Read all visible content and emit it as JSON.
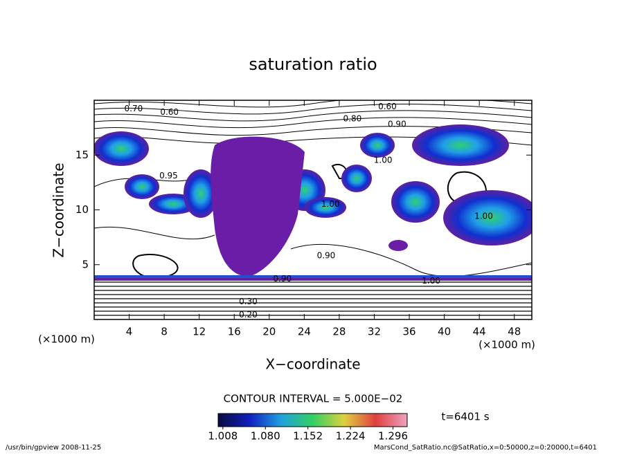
{
  "chart_data": {
    "type": "contour",
    "title": "saturation ratio",
    "x_label": "X−coordinate",
    "y_label": "Z−coordinate",
    "x_unit_label": "(×1000 m)",
    "y_unit_label": "(×1000 m)",
    "xlim": [
      0,
      50
    ],
    "xticks": [
      4,
      8,
      12,
      16,
      20,
      24,
      28,
      32,
      36,
      40,
      44,
      48
    ],
    "ylim": [
      0,
      20
    ],
    "yticks": [
      5,
      10,
      15
    ],
    "contour_interval": "CONTOUR INTERVAL = 5.000E−02",
    "time_label": "t=6401 s",
    "contour_labels": [
      {
        "text": "0.70",
        "x": 4.5,
        "y": 19.2
      },
      {
        "text": "0.60",
        "x": 8.6,
        "y": 18.9
      },
      {
        "text": "0.80",
        "x": 29.5,
        "y": 18.3
      },
      {
        "text": "0.60",
        "x": 33.5,
        "y": 19.4
      },
      {
        "text": "0.90",
        "x": 34.6,
        "y": 17.8
      },
      {
        "text": "1.00",
        "x": 33,
        "y": 14.5
      },
      {
        "text": "0.95",
        "x": 8.5,
        "y": 13.1
      },
      {
        "text": "1.00",
        "x": 27,
        "y": 10.5
      },
      {
        "text": "1.00",
        "x": 44.5,
        "y": 9.4
      },
      {
        "text": "0.90",
        "x": 26.5,
        "y": 5.8
      },
      {
        "text": "0.90",
        "x": 21.5,
        "y": 3.7
      },
      {
        "text": "1.00",
        "x": 38.5,
        "y": 3.5
      },
      {
        "text": "0.30",
        "x": 17.6,
        "y": 1.6
      },
      {
        "text": "0.20",
        "x": 17.6,
        "y": 0.4
      }
    ],
    "colorbar": {
      "clim": [
        1.0,
        1.32
      ],
      "ticks": [
        1.008,
        {
          "value": 1.08,
          "label": "1.080"
        },
        1.152,
        1.224,
        1.296
      ],
      "colors": [
        "#0a0a40",
        "#1020c0",
        "#20a0e0",
        "#30d060",
        "#e0d040",
        "#e04040",
        "#f0a0c0"
      ]
    },
    "footer_left": "/usr/bin/gpview  2008-11-25",
    "footer_right": "MarsCond_SatRatio.nc@SatRatio,x=0:50000,z=0:20000,t=6401"
  }
}
